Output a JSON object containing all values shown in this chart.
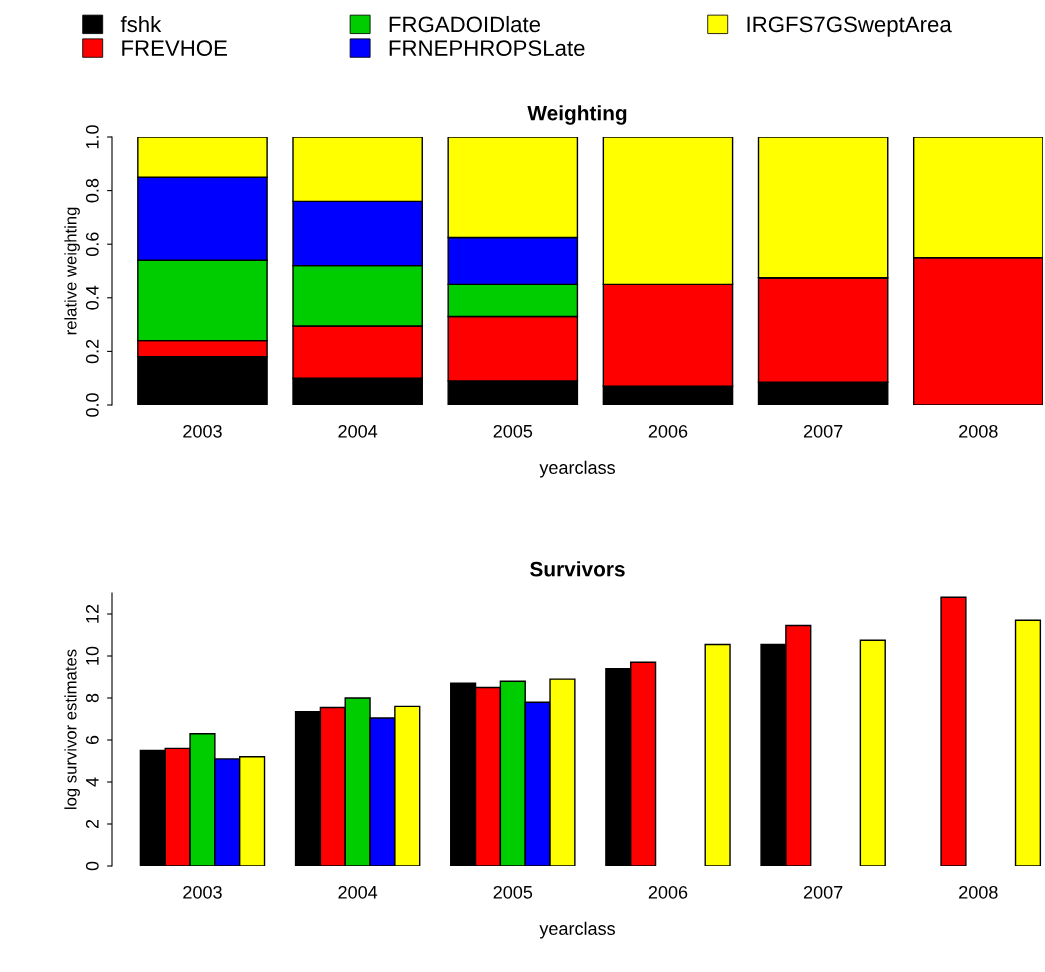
{
  "chart_data": [
    {
      "type": "bar",
      "title": "Weighting",
      "xlabel": "yearclass",
      "ylabel": "relative weighting",
      "stacked": true,
      "legend": "top",
      "categories": [
        "2003",
        "2004",
        "2005",
        "2006",
        "2007",
        "2008"
      ],
      "ylim": [
        0,
        1
      ],
      "yticks": [
        {
          "value": 0,
          "label": "0.0"
        },
        {
          "value": 0.2,
          "label": "0.2"
        },
        {
          "value": 0.4,
          "label": "0.4"
        },
        {
          "value": 0.6,
          "label": "0.6"
        },
        {
          "value": 0.8,
          "label": "0.8"
        },
        {
          "value": 1,
          "label": "1.0"
        }
      ],
      "grid": false,
      "series": [
        {
          "name": "fshk",
          "color": "#000000",
          "values": [
            0.18,
            0.1,
            0.09,
            0.07,
            0.085,
            0
          ]
        },
        {
          "name": "FREVHOE",
          "color": "#ff0000",
          "values": [
            0.06,
            0.195,
            0.24,
            0.38,
            0.39,
            0.55
          ]
        },
        {
          "name": "FRGADOIDlate",
          "color": "#00cd00",
          "values": [
            0.3,
            0.225,
            0.12,
            0,
            0,
            0
          ]
        },
        {
          "name": "FRNEPHROPSLate",
          "color": "#0000ff",
          "values": [
            0.31,
            0.24,
            0.175,
            0,
            0,
            0
          ]
        },
        {
          "name": "IRGFS7GSweptArea",
          "color": "#ffff00",
          "values": [
            0.15,
            0.24,
            0.375,
            0.55,
            0.525,
            0.45
          ]
        }
      ]
    },
    {
      "type": "bar",
      "title": "Survivors",
      "xlabel": "yearclass",
      "ylabel": "log survivor estimates",
      "categories": [
        "2003",
        "2004",
        "2005",
        "2006",
        "2007",
        "2008"
      ],
      "ylim": [
        0,
        13
      ],
      "yticks": [
        0,
        2,
        4,
        6,
        8,
        10,
        12
      ],
      "grid": false,
      "series": [
        {
          "color": "#000000",
          "values": [
            5.5,
            7.35,
            8.7,
            9.4,
            10.55,
            null
          ]
        },
        {
          "color": "#ff0000",
          "values": [
            5.6,
            7.55,
            8.5,
            9.7,
            11.45,
            12.8
          ]
        },
        {
          "color": "#00cd00",
          "values": [
            6.3,
            8.0,
            8.8,
            null,
            null,
            null
          ]
        },
        {
          "color": "#0000ff",
          "values": [
            5.1,
            7.05,
            7.8,
            null,
            null,
            null
          ]
        },
        {
          "color": "#ffff00",
          "values": [
            5.2,
            7.6,
            8.9,
            10.55,
            10.75,
            11.7
          ]
        }
      ]
    }
  ]
}
